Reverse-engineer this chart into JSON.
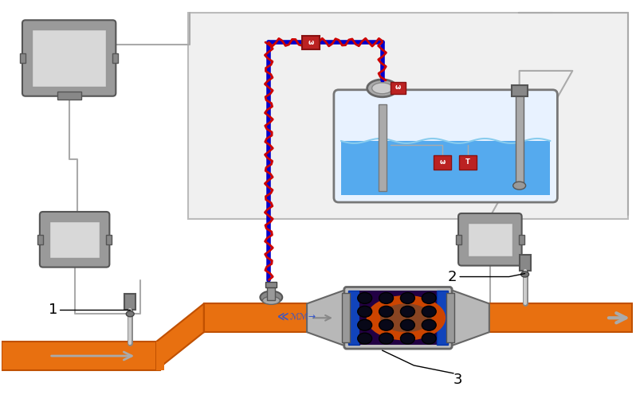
{
  "background_color": "#ffffff",
  "fig_width": 7.98,
  "fig_height": 5.25,
  "dpi": 100,
  "pipe_color": "#E87010",
  "pipe_edge": "#C05000",
  "tank_fill": "#55AAEE",
  "tank_bg": "#ddeeff",
  "tank_border": "#777777",
  "scr_silver": "#aaaaaa",
  "scr_silver_edge": "#666666",
  "scr_blue": "#2233BB",
  "scr_purple": "#553399",
  "scr_dark": "#111133",
  "heated_red": "#CC0000",
  "heated_blue": "#0000CC",
  "wire_gray": "#aaaaaa",
  "ecu_body": "#999999",
  "ecu_inner": "#dddddd",
  "ecu_light": "#cccccc",
  "sensor_gray": "#888888",
  "sensor_light": "#bbbbbb",
  "label1": "1",
  "label2": "2",
  "label3": "3"
}
